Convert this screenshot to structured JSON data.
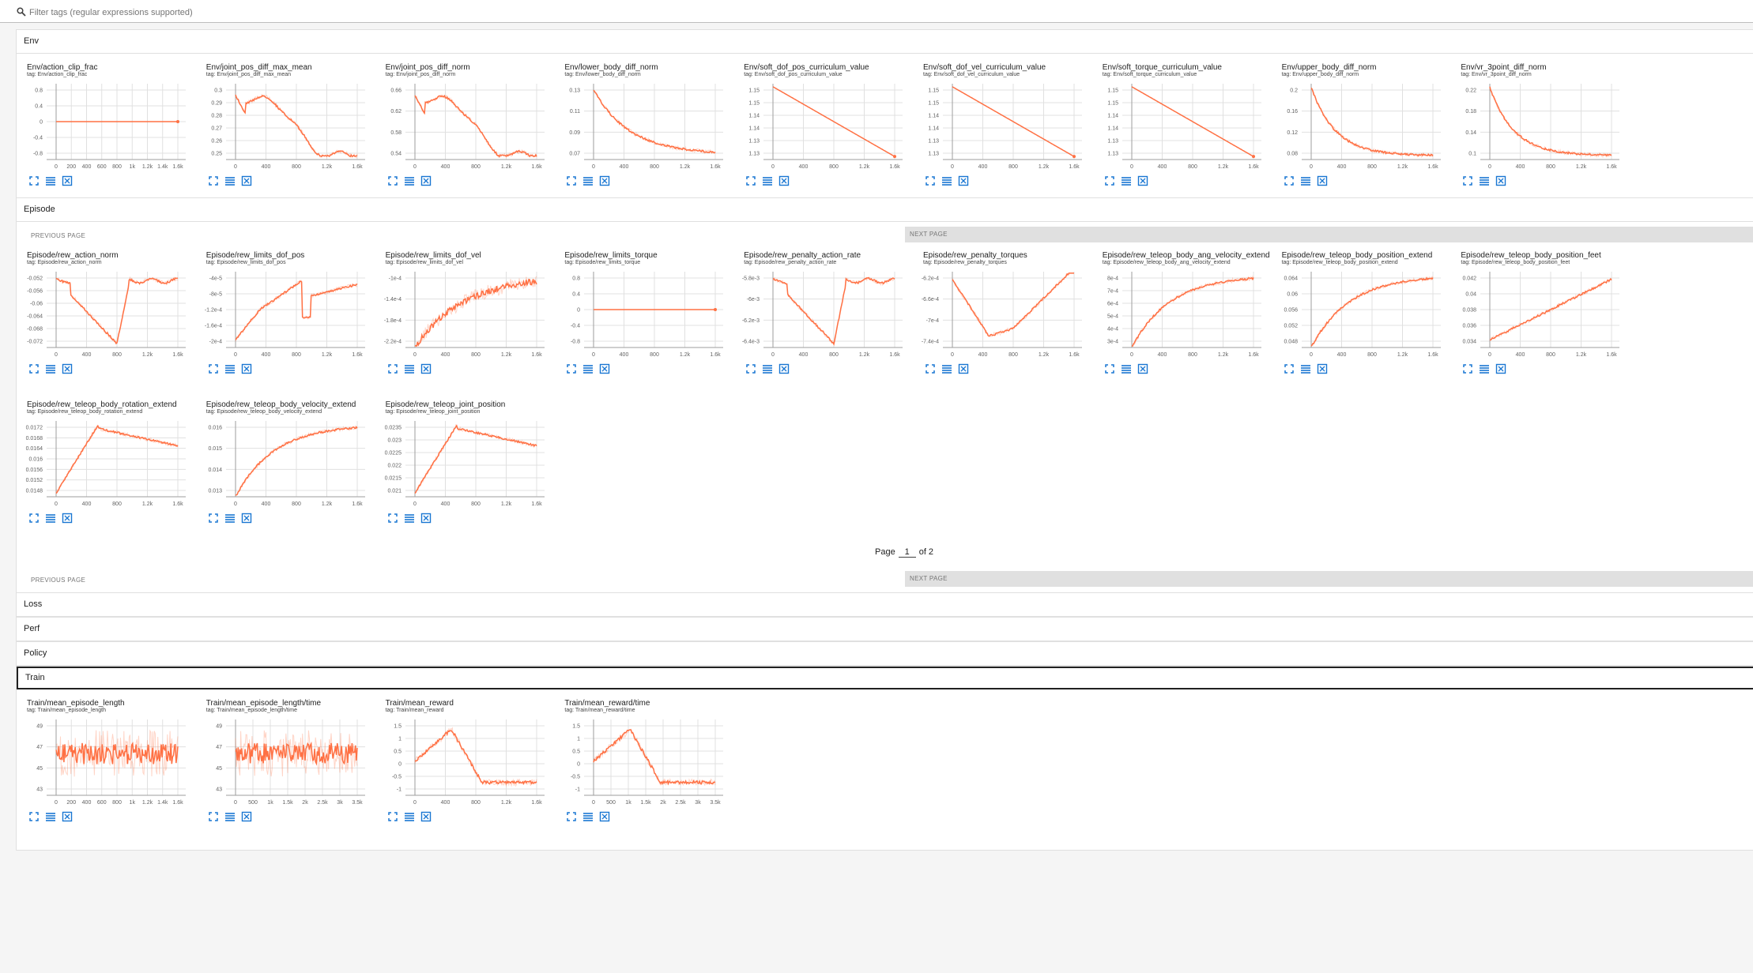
{
  "filter": {
    "placeholder": "Filter tags (regular expressions supported)"
  },
  "colors": {
    "line": "#ff7043",
    "grid": "#e0e0e0",
    "axis": "#9e9e9e",
    "icon": "#1976d2"
  },
  "sections": {
    "env": {
      "label": "Env"
    },
    "episode": {
      "label": "Episode"
    },
    "loss": {
      "label": "Loss"
    },
    "perf": {
      "label": "Perf"
    },
    "policy": {
      "label": "Policy"
    },
    "train": {
      "label": "Train"
    }
  },
  "pager": {
    "prev": "PREVIOUS PAGE",
    "next": "NEXT PAGE",
    "page_label": "Page",
    "page_value": "1",
    "of_label": "of 2"
  },
  "charts": {
    "env": [
      {
        "title": "Env/action_clip_frac",
        "tag": "tag: Env/action_clip_frac",
        "yticks": [
          "0.8",
          "0.4",
          "0",
          "-0.4",
          "-0.8"
        ],
        "xticks": [
          "0",
          "200",
          "400",
          "600",
          "800",
          "1k",
          "1.2k",
          "1.4k",
          "1.6k"
        ],
        "shape": "flat"
      },
      {
        "title": "Env/joint_pos_diff_max_mean",
        "tag": "tag: Env/joint_pos_diff_max_mean",
        "yticks": [
          "0.3",
          "0.29",
          "0.28",
          "0.27",
          "0.26",
          "0.25"
        ],
        "xticks": [
          "0",
          "400",
          "800",
          "1.2k",
          "1.6k"
        ],
        "shape": "decay1"
      },
      {
        "title": "Env/joint_pos_diff_norm",
        "tag": "tag: Env/joint_pos_diff_norm",
        "yticks": [
          "0.66",
          "0.62",
          "0.58",
          "0.54"
        ],
        "xticks": [
          "0",
          "400",
          "800",
          "1.2k",
          "1.6k"
        ],
        "shape": "decay1"
      },
      {
        "title": "Env/lower_body_diff_norm",
        "tag": "tag: Env/lower_body_diff_norm",
        "yticks": [
          "0.13",
          "0.11",
          "0.09",
          "0.07"
        ],
        "xticks": [
          "0",
          "400",
          "800",
          "1.2k",
          "1.6k"
        ],
        "shape": "decay2"
      },
      {
        "title": "Env/soft_dof_pos_curriculum_value",
        "tag": "tag: Env/soft_dof_pos_curriculum_value",
        "yticks": [
          "1.15",
          "1.15",
          "1.14",
          "1.14",
          "1.13",
          "1.13"
        ],
        "xticks": [
          "0",
          "400",
          "800",
          "1.2k",
          "1.6k"
        ],
        "shape": "linear"
      },
      {
        "title": "Env/soft_dof_vel_curriculum_value",
        "tag": "tag: Env/soft_dof_vel_curriculum_value",
        "yticks": [
          "1.15",
          "1.15",
          "1.14",
          "1.14",
          "1.13",
          "1.13"
        ],
        "xticks": [
          "0",
          "400",
          "800",
          "1.2k",
          "1.6k"
        ],
        "shape": "linear"
      },
      {
        "title": "Env/soft_torque_curriculum_value",
        "tag": "tag: Env/soft_torque_curriculum_value",
        "yticks": [
          "1.15",
          "1.15",
          "1.14",
          "1.14",
          "1.13",
          "1.13"
        ],
        "xticks": [
          "0",
          "400",
          "800",
          "1.2k",
          "1.6k"
        ],
        "shape": "linear"
      },
      {
        "title": "Env/upper_body_diff_norm",
        "tag": "tag: Env/upper_body_diff_norm",
        "yticks": [
          "0.2",
          "0.16",
          "0.12",
          "0.08"
        ],
        "xticks": [
          "0",
          "400",
          "800",
          "1.2k",
          "1.6k"
        ],
        "shape": "decay3"
      },
      {
        "title": "Env/vr_3point_diff_norm",
        "tag": "tag: Env/vr_3point_diff_norm",
        "yticks": [
          "0.22",
          "0.18",
          "0.14",
          "0.1"
        ],
        "xticks": [
          "0",
          "400",
          "800",
          "1.2k",
          "1.6k"
        ],
        "shape": "decay3"
      }
    ],
    "episode_row1": [
      {
        "title": "Episode/rew_action_norm",
        "tag": "tag: Episode/rew_action_norm",
        "yticks": [
          "-0.052",
          "-0.056",
          "-0.06",
          "-0.064",
          "-0.068",
          "-0.072"
        ],
        "xticks": [
          "0",
          "400",
          "800",
          "1.2k",
          "1.6k"
        ],
        "shape": "dip"
      },
      {
        "title": "Episode/rew_limits_dof_pos",
        "tag": "tag: Episode/rew_limits_dof_pos",
        "yticks": [
          "-4e-5",
          "-8e-5",
          "-1.2e-4",
          "-1.6e-4",
          "-2e-4"
        ],
        "xticks": [
          "0",
          "400",
          "800",
          "1.2k",
          "1.6k"
        ],
        "shape": "rise_dip"
      },
      {
        "title": "Episode/rew_limits_dof_vel",
        "tag": "tag: Episode/rew_limits_dof_vel",
        "yticks": [
          "-1e-4",
          "-1.4e-4",
          "-1.8e-4",
          "-2.2e-4"
        ],
        "xticks": [
          "0",
          "400",
          "800",
          "1.2k",
          "1.6k"
        ],
        "shape": "rise_noisy"
      },
      {
        "title": "Episode/rew_limits_torque",
        "tag": "tag: Episode/rew_limits_torque",
        "yticks": [
          "0.8",
          "0.4",
          "0",
          "-0.4",
          "-0.8"
        ],
        "xticks": [
          "0",
          "400",
          "800",
          "1.2k",
          "1.6k"
        ],
        "shape": "flat"
      },
      {
        "title": "Episode/rew_penalty_action_rate",
        "tag": "tag: Episode/rew_penalty_action_rate",
        "yticks": [
          "-5.8e-3",
          "-6e-3",
          "-6.2e-3",
          "-6.4e-3"
        ],
        "xticks": [
          "0",
          "400",
          "800",
          "1.2k",
          "1.6k"
        ],
        "shape": "dip"
      },
      {
        "title": "Episode/rew_penalty_torques",
        "tag": "tag: Episode/rew_penalty_torques",
        "yticks": [
          "-6.2e-4",
          "-6.6e-4",
          "-7e-4",
          "-7.4e-4"
        ],
        "xticks": [
          "0",
          "400",
          "800",
          "1.2k",
          "1.6k"
        ],
        "shape": "dip2"
      },
      {
        "title": "Episode/rew_teleop_body_ang_velocity_extend",
        "tag": "tag: Episode/rew_teleop_body_ang_velocity_extend",
        "yticks": [
          "8e-4",
          "7e-4",
          "6e-4",
          "5e-4",
          "4e-4",
          "3e-4"
        ],
        "xticks": [
          "0",
          "400",
          "800",
          "1.2k",
          "1.6k"
        ],
        "shape": "rise"
      },
      {
        "title": "Episode/rew_teleop_body_position_extend",
        "tag": "tag: Episode/rew_teleop_body_position_extend",
        "yticks": [
          "0.064",
          "0.06",
          "0.056",
          "0.052",
          "0.048"
        ],
        "xticks": [
          "0",
          "400",
          "800",
          "1.2k",
          "1.6k"
        ],
        "shape": "rise"
      },
      {
        "title": "Episode/rew_teleop_body_position_feet",
        "tag": "tag: Episode/rew_teleop_body_position_feet",
        "yticks": [
          "0.042",
          "0.04",
          "0.038",
          "0.036",
          "0.034"
        ],
        "xticks": [
          "0",
          "400",
          "800",
          "1.2k",
          "1.6k"
        ],
        "shape": "rise2"
      }
    ],
    "episode_row2": [
      {
        "title": "Episode/rew_teleop_body_rotation_extend",
        "tag": "tag: Episode/rew_teleop_body_rotation_extend",
        "yticks": [
          "0.0172",
          "0.0168",
          "0.0164",
          "0.016",
          "0.0156",
          "0.0152",
          "0.0148"
        ],
        "xticks": [
          "0",
          "400",
          "800",
          "1.2k",
          "1.6k"
        ],
        "shape": "rise_plateau"
      },
      {
        "title": "Episode/rew_teleop_body_velocity_extend",
        "tag": "tag: Episode/rew_teleop_body_velocity_extend",
        "yticks": [
          "0.016",
          "0.015",
          "0.014",
          "0.013"
        ],
        "xticks": [
          "0",
          "400",
          "800",
          "1.2k",
          "1.6k"
        ],
        "shape": "rise"
      },
      {
        "title": "Episode/rew_teleop_joint_position",
        "tag": "tag: Episode/rew_teleop_joint_position",
        "yticks": [
          "0.0235",
          "0.023",
          "0.0225",
          "0.022",
          "0.0215",
          "0.021"
        ],
        "xticks": [
          "0",
          "400",
          "800",
          "1.2k",
          "1.6k"
        ],
        "shape": "rise_plateau"
      }
    ],
    "train": [
      {
        "title": "Train/mean_episode_length",
        "tag": "tag: Train/mean_episode_length",
        "yticks": [
          "49",
          "47",
          "45",
          "43"
        ],
        "xticks": [
          "0",
          "200",
          "400",
          "600",
          "800",
          "1k",
          "1.2k",
          "1.4k",
          "1.6k"
        ],
        "shape": "noisy_band"
      },
      {
        "title": "Train/mean_episode_length/time",
        "tag": "tag: Train/mean_episode_length/time",
        "yticks": [
          "49",
          "47",
          "45",
          "43"
        ],
        "xticks": [
          "0",
          "500",
          "1k",
          "1.5k",
          "2k",
          "2.5k",
          "3k",
          "3.5k"
        ],
        "shape": "noisy_band"
      },
      {
        "title": "Train/mean_reward",
        "tag": "tag: Train/mean_reward",
        "yticks": [
          "1.5",
          "1",
          "0.5",
          "0",
          "-0.5",
          "-1"
        ],
        "xticks": [
          "0",
          "400",
          "800",
          "1.2k",
          "1.6k"
        ],
        "shape": "hump"
      },
      {
        "title": "Train/mean_reward/time",
        "tag": "tag: Train/mean_reward/time",
        "yticks": [
          "1.5",
          "1",
          "0.5",
          "0",
          "-0.5",
          "-1"
        ],
        "xticks": [
          "0",
          "500",
          "1k",
          "1.5k",
          "2k",
          "2.5k",
          "3k",
          "3.5k"
        ],
        "shape": "hump"
      }
    ]
  }
}
